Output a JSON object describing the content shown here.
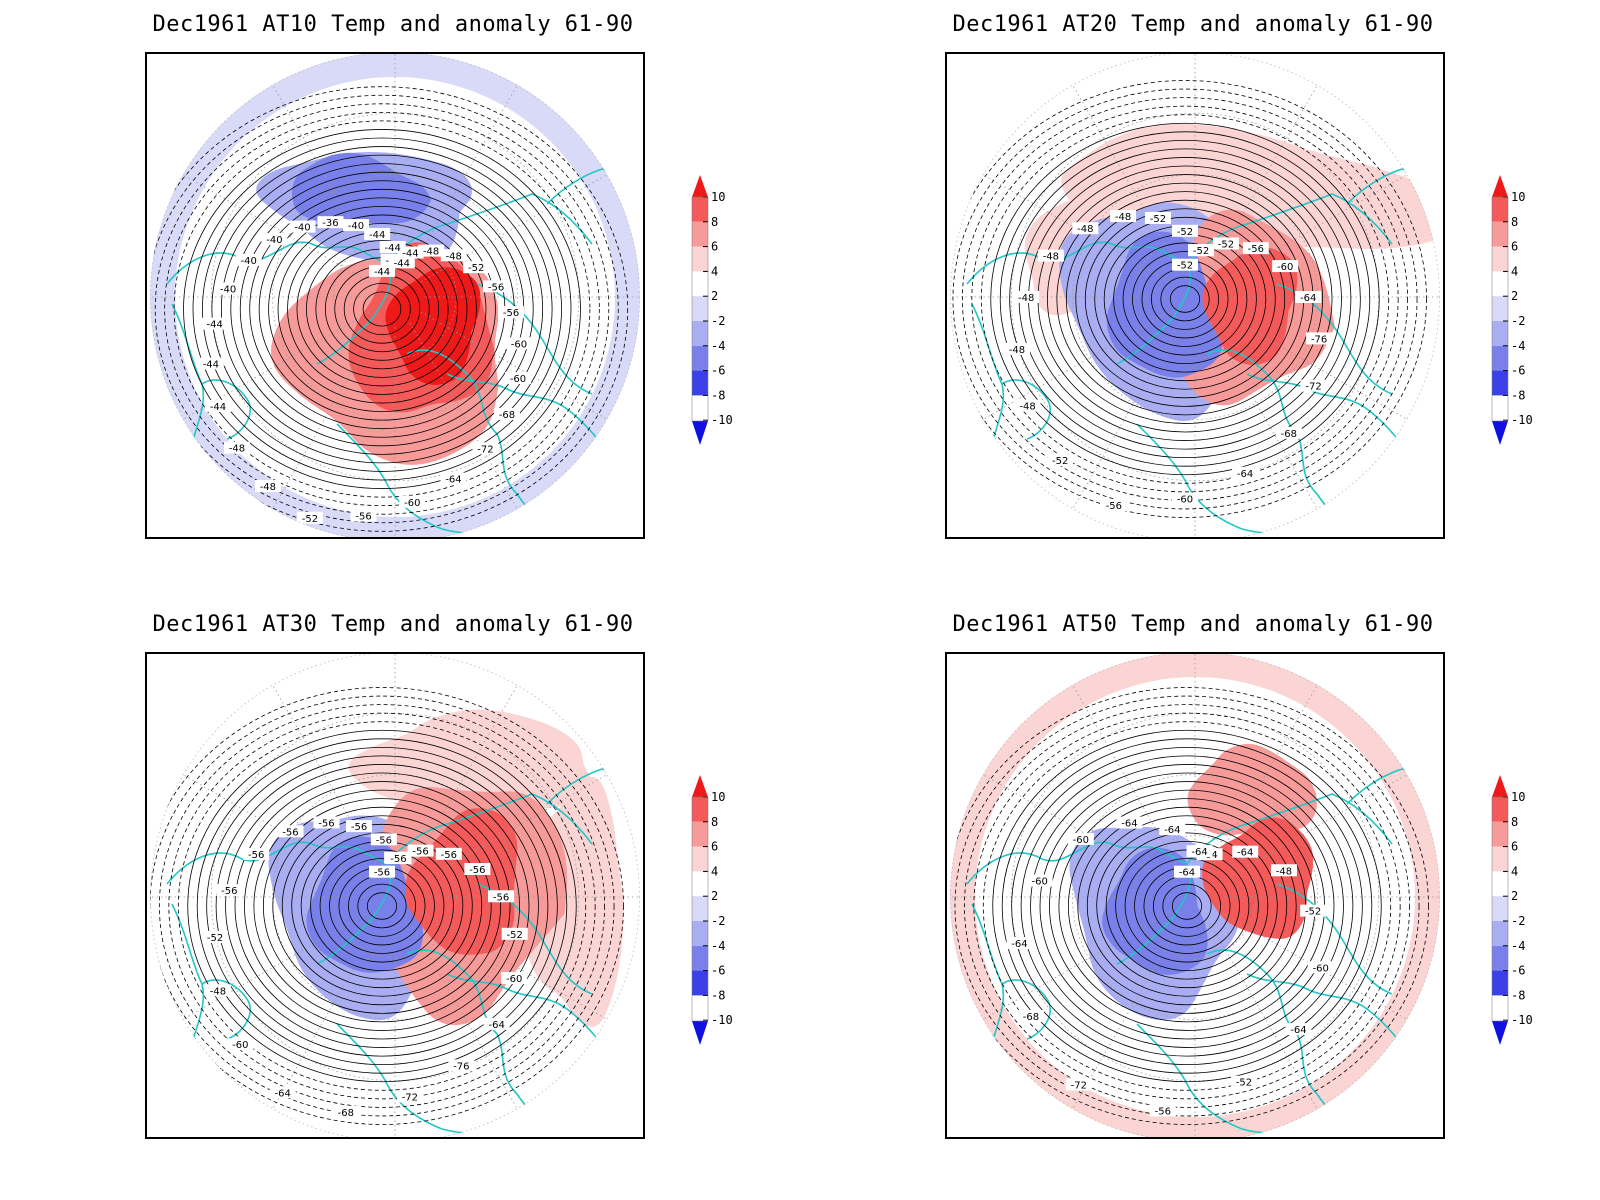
{
  "panels": [
    {
      "title": "Dec1961 AT10 Temp and anomaly 61-90",
      "contour_labels": [
        "-44",
        "-44",
        "-44",
        "-48",
        "-48",
        "-52",
        "-56",
        "-56",
        "-60",
        "-60",
        "-68",
        "-72",
        "-64",
        "-60",
        "-56",
        "-52",
        "-48",
        "-48",
        "-44",
        "-44",
        "-44",
        "-40",
        "-40",
        "-40",
        "-40",
        "-36",
        "-40",
        "-44",
        "-44",
        "-44"
      ],
      "anomalies": [
        {
          "dir": "cold",
          "level": 3
        },
        {
          "dir": "cold",
          "level": 2
        },
        {
          "dir": "cold",
          "level": 1
        },
        {
          "dir": "warm",
          "level": 4
        },
        {
          "dir": "warm",
          "level": 3
        },
        {
          "dir": "warm",
          "level": 2
        },
        {
          "dir": "warm",
          "level": 1
        },
        {
          "dir": "cold",
          "level": 1
        }
      ]
    },
    {
      "title": "Dec1961 AT20 Temp and anomaly 61-90",
      "contour_labels": [
        "-52",
        "-52",
        "-52",
        "-56",
        "-60",
        "-64",
        "-76",
        "-72",
        "-68",
        "-64",
        "-60",
        "-56",
        "-52",
        "-48",
        "-48",
        "-48",
        "-48",
        "-48",
        "-48",
        "-52",
        "-52",
        "-52"
      ],
      "anomalies": [
        {
          "dir": "cold",
          "level": 3
        },
        {
          "dir": "cold",
          "level": 2
        },
        {
          "dir": "warm",
          "level": 3
        },
        {
          "dir": "warm",
          "level": 2
        },
        {
          "dir": "warm",
          "level": 1
        },
        {
          "dir": "warm",
          "level": 1
        }
      ]
    },
    {
      "title": "Dec1961 AT30 Temp and anomaly 61-90",
      "contour_labels": [
        "-56",
        "-56",
        "-56",
        "-56",
        "-56",
        "-56",
        "-52",
        "-60",
        "-64",
        "-76",
        "-72",
        "-68",
        "-64",
        "-60",
        "-48",
        "-52",
        "-56",
        "-56",
        "-56",
        "-56",
        "-56",
        "-56",
        "-56"
      ],
      "anomalies": [
        {
          "dir": "cold",
          "level": 3
        },
        {
          "dir": "cold",
          "level": 2
        },
        {
          "dir": "warm",
          "level": 3
        },
        {
          "dir": "warm",
          "level": 2
        },
        {
          "dir": "warm",
          "level": 1
        },
        {
          "dir": "warm",
          "level": 1
        }
      ]
    },
    {
      "title": "Dec1961 AT50 Temp and anomaly 61-90",
      "contour_labels": [
        "-64",
        "-64",
        "-64",
        "-48",
        "-52",
        "-60",
        "-64",
        "-52",
        "-56",
        "-72",
        "-68",
        "-64",
        "-60",
        "-60",
        "-64",
        "-64",
        "-64"
      ],
      "anomalies": [
        {
          "dir": "cold",
          "level": 3
        },
        {
          "dir": "cold",
          "level": 2
        },
        {
          "dir": "warm",
          "level": 3
        },
        {
          "dir": "warm",
          "level": 2
        },
        {
          "dir": "warm",
          "level": 1
        },
        {
          "dir": "warm",
          "level": 1
        }
      ]
    }
  ],
  "colorbar": {
    "labels": [
      "10",
      "8",
      "6",
      "4",
      "2",
      "-2",
      "-4",
      "-6",
      "-8",
      "-10"
    ],
    "colors": [
      "#ee1a1a",
      "#f45a5a",
      "#f79a9a",
      "#fbd4d4",
      "#ffffff",
      "#d8daf8",
      "#a9aef2",
      "#7a80ea",
      "#3a40e6",
      "#1010e0"
    ]
  },
  "colors": {
    "coast": "#22c6c6",
    "contour": "#000000",
    "grid": "#9a9a9a"
  }
}
